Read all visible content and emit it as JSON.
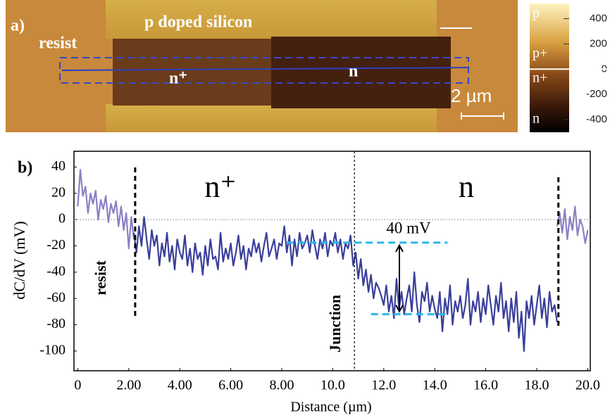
{
  "panel_a": {
    "label": "a)",
    "texts": [
      "p doped silicon",
      "resist",
      "n⁺",
      "n"
    ],
    "scale_bar": "2 µm",
    "colorbar": {
      "lim": [
        -500,
        520
      ],
      "ticks": [
        400,
        200,
        0,
        -200,
        -400
      ],
      "regions": [
        "p",
        "p+",
        "n+",
        "n"
      ]
    }
  },
  "chart_data": {
    "type": "line",
    "panel_label": "b)",
    "x_label": "Distance (µm)",
    "y_label": "dC/dV (mV)",
    "xlim": [
      -0.15,
      20.1
    ],
    "ylim": [
      -115,
      52
    ],
    "xticks": [
      0,
      {
        "value": 2,
        "label": "2.00"
      },
      {
        "value": 4,
        "label": "4.00"
      },
      {
        "value": 6,
        "label": "6.00"
      },
      {
        "value": 8,
        "label": "8.00"
      },
      {
        "value": 10,
        "label": "10.0"
      },
      {
        "value": 12,
        "label": "12.0"
      },
      {
        "value": 14,
        "label": "14.0"
      },
      {
        "value": 16,
        "label": "16.0"
      },
      {
        "value": 18,
        "label": "18.0"
      },
      {
        "value": 20,
        "label": "20.0"
      }
    ],
    "yticks": [
      40,
      20,
      0,
      -20,
      -40,
      -60,
      -80,
      -100
    ],
    "zero_line": true,
    "vlines": [
      2.25,
      10.85,
      18.85
    ],
    "hlines": [
      {
        "y": -17.5,
        "x": [
          8.2,
          14.5
        ]
      },
      {
        "y": -72,
        "x": [
          11.5,
          14.5
        ]
      }
    ],
    "annotations": [
      "n⁺",
      "n",
      "40 mV",
      "resist",
      "Junction"
    ],
    "series": [
      {
        "color": "#8a82c4",
        "x": [
          0,
          0.1,
          0.2,
          0.3,
          0.4,
          0.5,
          0.6,
          0.7,
          0.8,
          0.9,
          1,
          1.1,
          1.2,
          1.3,
          1.4,
          1.5,
          1.6,
          1.7,
          1.8,
          1.9,
          2,
          2.1,
          2.2
        ],
        "values": [
          10,
          38,
          18,
          25,
          5,
          20,
          12,
          22,
          0,
          15,
          8,
          18,
          -2,
          12,
          5,
          14,
          -5,
          10,
          -8,
          5,
          -22,
          2,
          -15
        ]
      },
      {
        "color": "#3a3f9a",
        "x": [
          2.2,
          2.3,
          2.4,
          2.5,
          2.6,
          2.7,
          2.8,
          2.9,
          3,
          3.1,
          3.2,
          3.3,
          3.4,
          3.5,
          3.6,
          3.7,
          3.8,
          3.9,
          4,
          4.1,
          4.2,
          4.3,
          4.4,
          4.5,
          4.6,
          4.7,
          4.8,
          4.9,
          5,
          5.1,
          5.2,
          5.3,
          5.4,
          5.5,
          5.6,
          5.7,
          5.8,
          5.9,
          6,
          6.1,
          6.2,
          6.3,
          6.4,
          6.5,
          6.6,
          6.7,
          6.8,
          6.9,
          7,
          7.1,
          7.2,
          7.3,
          7.4,
          7.5,
          7.6,
          7.7,
          7.8,
          7.9,
          8,
          8.1,
          8.2,
          8.3,
          8.4,
          8.5,
          8.6,
          8.7,
          8.8,
          8.9,
          9,
          9.1,
          9.2,
          9.3,
          9.4,
          9.5,
          9.6,
          9.7,
          9.8,
          9.9,
          10,
          10.1,
          10.2,
          10.3,
          10.4,
          10.5,
          10.6,
          10.7,
          10.8,
          10.9,
          11,
          11.1,
          11.2,
          11.3,
          11.4,
          11.5,
          11.6,
          11.7,
          11.8,
          11.9,
          12,
          12.1,
          12.2,
          12.3,
          12.4,
          12.5,
          12.6,
          12.7,
          12.8,
          12.9,
          13,
          13.1,
          13.2,
          13.3,
          13.4,
          13.5,
          13.6,
          13.7,
          13.8,
          13.9,
          14,
          14.1,
          14.2,
          14.3,
          14.4,
          14.5,
          14.6,
          14.7,
          14.8,
          14.9,
          15,
          15.1,
          15.2,
          15.3,
          15.4,
          15.5,
          15.6,
          15.7,
          15.8,
          15.9,
          16,
          16.1,
          16.2,
          16.3,
          16.4,
          16.5,
          16.6,
          16.7,
          16.8,
          16.9,
          17,
          17.1,
          17.2,
          17.3,
          17.4,
          17.5,
          17.6,
          17.7,
          17.8,
          17.9,
          18,
          18.1,
          18.2,
          18.3,
          18.4,
          18.5,
          18.6,
          18.7,
          18.8
        ],
        "values": [
          -10,
          -25,
          -5,
          -20,
          2,
          -15,
          -30,
          -8,
          -20,
          -12,
          -35,
          -18,
          -28,
          -10,
          -32,
          -20,
          -38,
          -15,
          -25,
          -30,
          -12,
          -35,
          -22,
          -40,
          -18,
          -30,
          -25,
          -42,
          -20,
          -35,
          -15,
          -30,
          -28,
          -38,
          -10,
          -32,
          -22,
          -30,
          -18,
          -35,
          -25,
          -12,
          -30,
          -20,
          -38,
          -22,
          -28,
          -15,
          -25,
          -18,
          -32,
          -20,
          -10,
          -28,
          -22,
          -15,
          -30,
          -18,
          -20,
          -5,
          -25,
          -12,
          -35,
          -15,
          -28,
          -10,
          -22,
          -18,
          -12,
          -25,
          -8,
          -20,
          -30,
          -15,
          -22,
          -10,
          -28,
          -16,
          -20,
          -10,
          -25,
          -15,
          -30,
          -18,
          -22,
          -12,
          -35,
          -25,
          -45,
          -30,
          -50,
          -38,
          -55,
          -42,
          -60,
          -48,
          -52,
          -58,
          -65,
          -50,
          -70,
          -58,
          -75,
          -45,
          -68,
          -55,
          -72,
          -60,
          -50,
          -70,
          -40,
          -65,
          -78,
          -55,
          -62,
          -48,
          -70,
          -58,
          -68,
          -75,
          -55,
          -85,
          -60,
          -72,
          -50,
          -80,
          -62,
          -70,
          -58,
          -75,
          -65,
          -45,
          -80,
          -62,
          -70,
          -55,
          -78,
          -60,
          -72,
          -50,
          -65,
          -80,
          -58,
          -70,
          -48,
          -75,
          -62,
          -85,
          -60,
          -78,
          -55,
          -90,
          -70,
          -100,
          -62,
          -75,
          -58,
          -80,
          -65,
          -50,
          -75,
          -60,
          -82,
          -55,
          -70,
          -65,
          -78
        ]
      },
      {
        "color": "#8a82c4",
        "x": [
          18.8,
          18.9,
          19,
          19.1,
          19.2,
          19.3,
          19.4,
          19.5,
          19.6,
          19.7,
          19.8,
          19.9,
          20
        ],
        "values": [
          -5,
          5,
          -10,
          8,
          -15,
          2,
          -8,
          10,
          -12,
          0,
          -5,
          -18,
          -8
        ]
      }
    ]
  }
}
